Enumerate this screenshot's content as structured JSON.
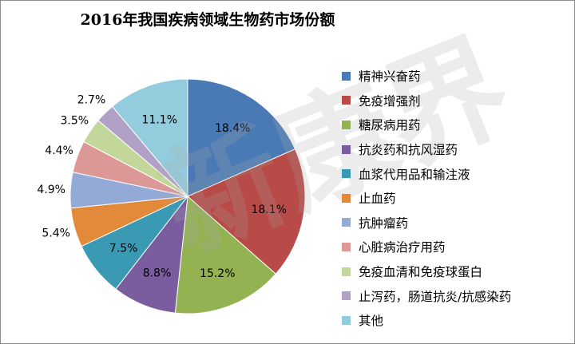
{
  "chart_data": {
    "type": "pie",
    "title": "2016年我国疾病领域生物药市场份额",
    "legend_position": "right",
    "slices": [
      {
        "name": "精神兴奋药",
        "value": 18.4,
        "label": "18.4%",
        "color": "#4a7ab5"
      },
      {
        "name": "免疫增强剂",
        "value": 18.1,
        "label": "18.1%",
        "color": "#b84a47"
      },
      {
        "name": "糖尿病用药",
        "value": 15.2,
        "label": "15.2%",
        "color": "#93b352"
      },
      {
        "name": "抗炎药和抗风湿药",
        "value": 8.8,
        "label": "8.8%",
        "color": "#7a5d9e"
      },
      {
        "name": "血浆代用品和输注液",
        "value": 7.5,
        "label": "7.5%",
        "color": "#3b9ab3"
      },
      {
        "name": "止血药",
        "value": 5.4,
        "label": "5.4%",
        "color": "#e38a3a"
      },
      {
        "name": "抗肿瘤药",
        "value": 4.9,
        "label": "4.9%",
        "color": "#93aad6"
      },
      {
        "name": "心脏病治疗用药",
        "value": 4.4,
        "label": "4.4%",
        "color": "#dc9896"
      },
      {
        "name": "免疫血清和免疫球蛋白",
        "value": 3.5,
        "label": "3.5%",
        "color": "#c4d79b"
      },
      {
        "name": "止泻药，肠道抗炎/抗感染药",
        "value": 2.7,
        "label": "2.7%",
        "color": "#b2a1c7"
      },
      {
        "name": "其他",
        "value": 11.1,
        "label": "11.1%",
        "color": "#93cddd"
      }
    ]
  },
  "watermark": "新康界"
}
